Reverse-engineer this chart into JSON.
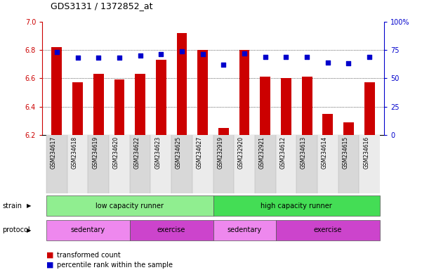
{
  "title": "GDS3131 / 1372852_at",
  "samples": [
    "GSM234617",
    "GSM234618",
    "GSM234619",
    "GSM234620",
    "GSM234622",
    "GSM234623",
    "GSM234625",
    "GSM234627",
    "GSM232919",
    "GSM232920",
    "GSM232921",
    "GSM234612",
    "GSM234613",
    "GSM234614",
    "GSM234615",
    "GSM234616"
  ],
  "bar_values": [
    6.82,
    6.57,
    6.63,
    6.59,
    6.63,
    6.73,
    6.92,
    6.8,
    6.25,
    6.8,
    6.61,
    6.6,
    6.61,
    6.35,
    6.29,
    6.57
  ],
  "dot_values": [
    73,
    68,
    68,
    68,
    70,
    71,
    74,
    71,
    62,
    72,
    69,
    69,
    69,
    64,
    63,
    69
  ],
  "ylim_left": [
    6.2,
    7.0
  ],
  "ylim_right": [
    0,
    100
  ],
  "yticks_left": [
    6.2,
    6.4,
    6.6,
    6.8,
    7.0
  ],
  "yticks_right": [
    0,
    25,
    50,
    75,
    100
  ],
  "bar_color": "#cc0000",
  "dot_color": "#0000cc",
  "bar_bottom": 6.2,
  "bg_color": "#ffffff",
  "strain_groups": [
    {
      "label": "low capacity runner",
      "start": 0,
      "end": 7,
      "color": "#90ee90"
    },
    {
      "label": "high capacity runner",
      "start": 8,
      "end": 15,
      "color": "#44dd55"
    }
  ],
  "protocol_groups": [
    {
      "label": "sedentary",
      "start": 0,
      "end": 3,
      "color": "#ee88ee"
    },
    {
      "label": "exercise",
      "start": 4,
      "end": 7,
      "color": "#cc44cc"
    },
    {
      "label": "sedentary",
      "start": 8,
      "end": 10,
      "color": "#ee88ee"
    },
    {
      "label": "exercise",
      "start": 11,
      "end": 15,
      "color": "#cc44cc"
    }
  ],
  "legend_items": [
    {
      "color": "#cc0000",
      "label": "transformed count"
    },
    {
      "color": "#0000cc",
      "label": "percentile rank within the sample"
    }
  ],
  "strain_label": "strain",
  "protocol_label": "protocol",
  "right_axis_color": "#0000cc",
  "left_axis_color": "#cc0000",
  "label_box_colors": [
    "#d8d8d8",
    "#ebebeb"
  ]
}
